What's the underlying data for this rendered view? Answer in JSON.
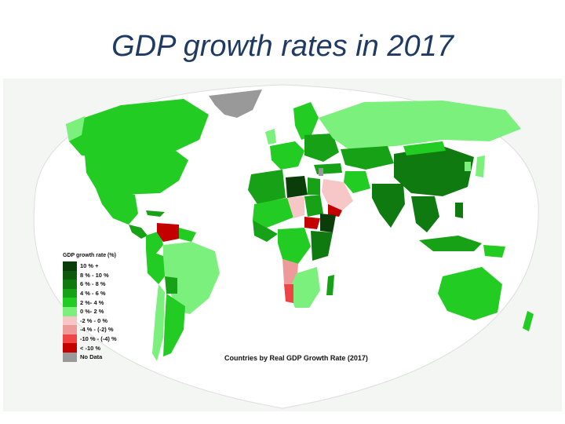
{
  "title": "GDP growth rates in 2017",
  "map": {
    "caption": "Countries by Real GDP Growth Rate (2017)",
    "legend_title": "GDP growth rate (%)",
    "legend": [
      {
        "label": "10 % +",
        "color": "#0b3d0b"
      },
      {
        "label": "8 % - 10 %",
        "color": "#0d5a0d"
      },
      {
        "label": "6 % - 8 %",
        "color": "#0f7a0f"
      },
      {
        "label": "4 % - 6 %",
        "color": "#16a116"
      },
      {
        "label": "2 %- 4 %",
        "color": "#22cc22"
      },
      {
        "label": "0 %- 2 %",
        "color": "#7cf07c"
      },
      {
        "label": "-2 % - 0 %",
        "color": "#f7c6c6"
      },
      {
        "label": "-4 % - (-2) %",
        "color": "#ee9a9a"
      },
      {
        "label": "-10 % - (-4) %",
        "color": "#ee4444"
      },
      {
        "label": "< -10 %",
        "color": "#c40000"
      },
      {
        "label": "No Data",
        "color": "#999999"
      }
    ],
    "ocean_color": "#ffffff"
  }
}
